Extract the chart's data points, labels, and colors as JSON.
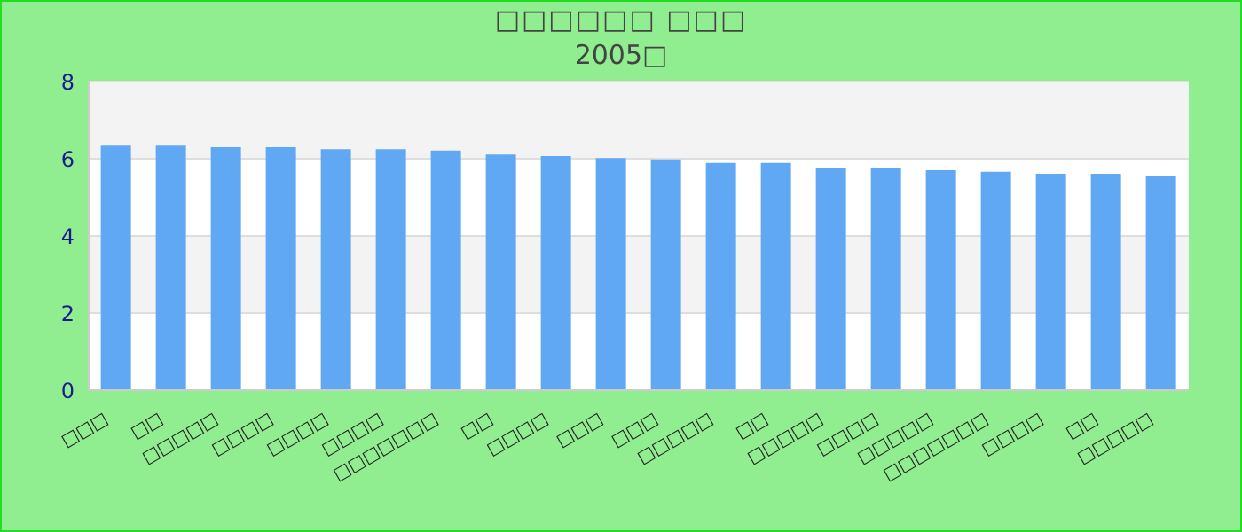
{
  "chart_data": {
    "type": "bar",
    "title": "□□□□□□ □□□",
    "subtitle": "2005□",
    "categories": [
      "□□□",
      "□□",
      "□□□□□",
      "□□□□",
      "□□□□",
      "□□□□",
      "□□□□□□□",
      "□□",
      "□□□□",
      "□□□",
      "□□□",
      "□□□□□",
      "□□",
      "□□□□□",
      "□□□□",
      "□□□□□",
      "□□□□□□□",
      "□□□□",
      "□□",
      "□□□□□"
    ],
    "values": [
      6.34,
      6.34,
      6.3,
      6.3,
      6.25,
      6.25,
      6.21,
      6.11,
      6.07,
      6.02,
      5.98,
      5.89,
      5.89,
      5.75,
      5.75,
      5.7,
      5.66,
      5.61,
      5.61,
      5.56
    ],
    "color": "#60a8f4",
    "ylim": [
      0,
      8
    ],
    "yticks": [
      0,
      2,
      4,
      6,
      8
    ],
    "grid": "y"
  }
}
